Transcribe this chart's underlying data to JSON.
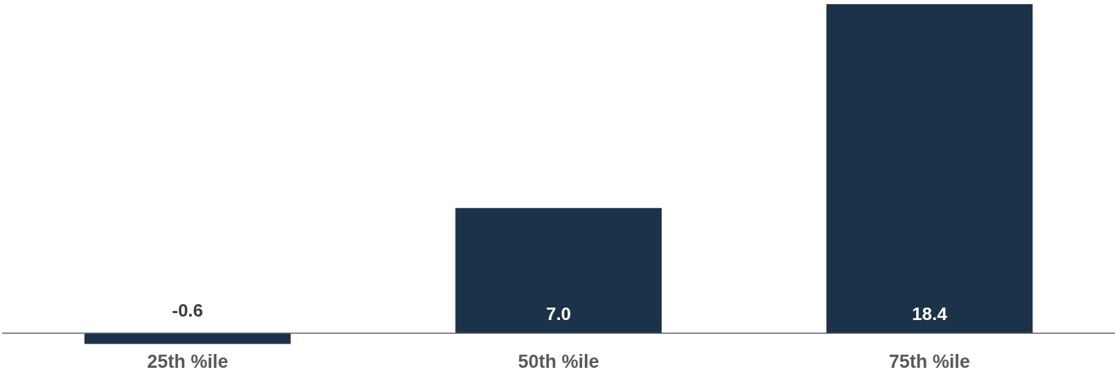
{
  "chart_data": {
    "type": "bar",
    "categories": [
      "25th %ile",
      "50th %ile",
      "75th %ile"
    ],
    "values": [
      -0.6,
      7.0,
      18.4
    ],
    "color": "#1c3249",
    "value_labels": [
      "-0.6",
      "7.0",
      "18.4"
    ]
  }
}
